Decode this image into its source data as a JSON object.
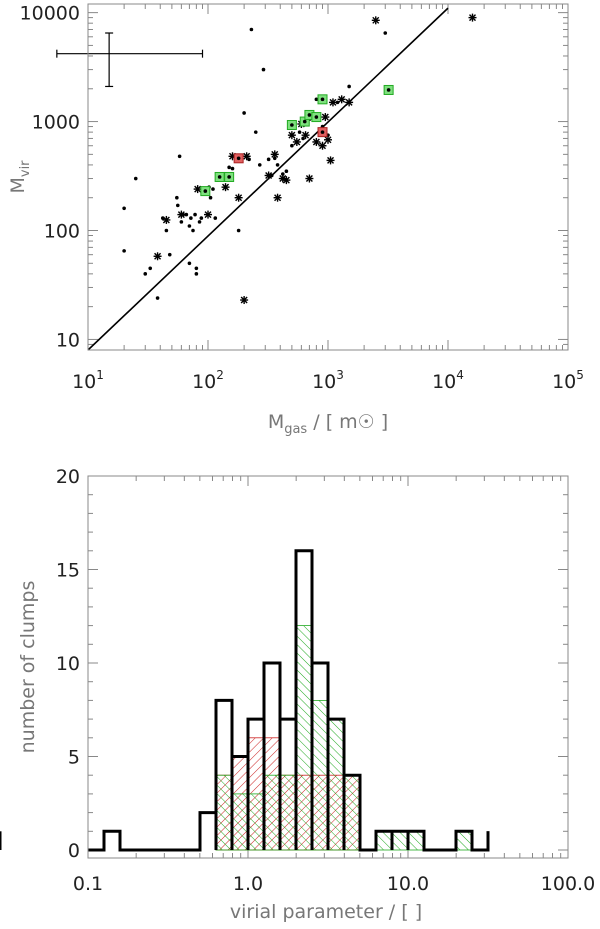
{
  "chart_data": [
    {
      "type": "scatter",
      "xlabel": "M",
      "xlabel_sub": "gas",
      "xlabel_suffix": " / [ m",
      "xlabel_symbol": "☉",
      "xlabel_end": " ]",
      "ylabel": "M",
      "ylabel_sub": "vir",
      "x_scale": "log",
      "y_scale": "log",
      "xlim": [
        10,
        100000
      ],
      "ylim": [
        8,
        12000
      ],
      "x_ticks": [
        {
          "value": 10,
          "base": "10",
          "exp": "1"
        },
        {
          "value": 100,
          "base": "10",
          "exp": "2"
        },
        {
          "value": 1000,
          "base": "10",
          "exp": "3"
        },
        {
          "value": 10000,
          "base": "10",
          "exp": "4"
        },
        {
          "value": 100000,
          "base": "10",
          "exp": "5"
        }
      ],
      "y_ticks": [
        {
          "value": 10,
          "label": "10"
        },
        {
          "value": 100,
          "label": "100"
        },
        {
          "value": 1000,
          "label": "1000"
        },
        {
          "value": 10000,
          "label": "10000"
        }
      ],
      "fit_line": {
        "x": [
          10,
          10000
        ],
        "y": [
          8,
          11000
        ]
      },
      "error_bar": {
        "x": 15,
        "y": 4200,
        "x_low": 5.5,
        "x_high": 90,
        "y_low": 2100,
        "y_high": 6500
      },
      "series": [
        {
          "marker": "dot",
          "points": [
            [
              20,
              160
            ],
            [
              20,
              65
            ],
            [
              25,
              300
            ],
            [
              30,
              40
            ],
            [
              33,
              45
            ],
            [
              38,
              24
            ],
            [
              42,
              130
            ],
            [
              45,
              100
            ],
            [
              48,
              60
            ],
            [
              55,
              200
            ],
            [
              58,
              480
            ],
            [
              60,
              120
            ],
            [
              62,
              140
            ],
            [
              66,
              140
            ],
            [
              70,
              110
            ],
            [
              72,
              130
            ],
            [
              75,
              100
            ],
            [
              78,
              140
            ],
            [
              80,
              45
            ],
            [
              80,
              40
            ],
            [
              85,
              120
            ],
            [
              88,
              130
            ],
            [
              90,
              220
            ],
            [
              95,
              225
            ],
            [
              100,
              220
            ],
            [
              102,
              250
            ],
            [
              105,
              200
            ],
            [
              110,
              240
            ],
            [
              115,
              130
            ],
            [
              120,
              290
            ],
            [
              140,
              310
            ],
            [
              150,
              380
            ],
            [
              160,
              370
            ],
            [
              180,
              100
            ],
            [
              200,
              1200
            ],
            [
              220,
              450
            ],
            [
              230,
              7000
            ],
            [
              250,
              800
            ],
            [
              270,
              400
            ],
            [
              290,
              3000
            ],
            [
              320,
              450
            ],
            [
              340,
              320
            ],
            [
              360,
              460
            ],
            [
              380,
              400
            ],
            [
              420,
              330
            ],
            [
              450,
              350
            ],
            [
              500,
              600
            ],
            [
              580,
              800
            ],
            [
              620,
              700
            ],
            [
              700,
              1050
            ],
            [
              800,
              1600
            ],
            [
              900,
              900
            ],
            [
              1000,
              750
            ],
            [
              1200,
              1500
            ],
            [
              1500,
              2100
            ],
            [
              3000,
              6500
            ],
            [
              140,
              250
            ],
            [
              70,
              50
            ],
            [
              56,
              170
            ]
          ]
        },
        {
          "marker": "asterisk",
          "points": [
            [
              38,
              58
            ],
            [
              45,
              125
            ],
            [
              60,
              140
            ],
            [
              82,
              240
            ],
            [
              100,
              140
            ],
            [
              140,
              250
            ],
            [
              160,
              480
            ],
            [
              180,
              200
            ],
            [
              200,
              23
            ],
            [
              210,
              480
            ],
            [
              320,
              320
            ],
            [
              360,
              500
            ],
            [
              380,
              200
            ],
            [
              420,
              300
            ],
            [
              450,
              290
            ],
            [
              500,
              750
            ],
            [
              550,
              650
            ],
            [
              600,
              950
            ],
            [
              650,
              750
            ],
            [
              700,
              300
            ],
            [
              800,
              650
            ],
            [
              950,
              1100
            ],
            [
              1000,
              680
            ],
            [
              1050,
              440
            ],
            [
              1100,
              1500
            ],
            [
              1300,
              1600
            ],
            [
              1500,
              1500
            ],
            [
              2500,
              8500
            ],
            [
              16000,
              9000
            ],
            [
              900,
              600
            ]
          ]
        },
        {
          "marker": "green-box",
          "points": [
            [
              95,
              230
            ],
            [
              125,
              310
            ],
            [
              150,
              310
            ],
            [
              500,
              930
            ],
            [
              640,
              1000
            ],
            [
              700,
              1150
            ],
            [
              800,
              1100
            ],
            [
              900,
              1600
            ],
            [
              3200,
              1950
            ]
          ]
        },
        {
          "marker": "red-box",
          "points": [
            [
              180,
              460
            ],
            [
              900,
              800
            ]
          ]
        }
      ]
    },
    {
      "type": "histogram",
      "xlabel": "virial parameter / [   ]",
      "ylabel": "number of clumps",
      "x_scale": "log",
      "y_scale": "linear",
      "xlim": [
        0.1,
        100.0
      ],
      "ylim": [
        0,
        20
      ],
      "x_ticks": [
        {
          "value": 0.1,
          "label": "0.1"
        },
        {
          "value": 1.0,
          "label": "1.0"
        },
        {
          "value": 10.0,
          "label": "10.0"
        },
        {
          "value": 100.0,
          "label": "100.0"
        }
      ],
      "y_ticks": [
        {
          "value": 0,
          "label": "0"
        },
        {
          "value": 5,
          "label": "5"
        },
        {
          "value": 10,
          "label": "10"
        },
        {
          "value": 15,
          "label": "15"
        },
        {
          "value": 20,
          "label": "20"
        }
      ],
      "bin_edges_log10": [
        -1.0,
        -0.9,
        -0.8,
        -0.7,
        -0.6,
        -0.5,
        -0.4,
        -0.3,
        -0.2,
        -0.1,
        0.0,
        0.1,
        0.2,
        0.3,
        0.4,
        0.5,
        0.6,
        0.7,
        0.8,
        0.9,
        1.0,
        1.1,
        1.2,
        1.3,
        1.4,
        1.5
      ],
      "series": [
        {
          "style": "total",
          "color": "#000000",
          "values": [
            0,
            1,
            0,
            0,
            0,
            0,
            0,
            2,
            8,
            5,
            7,
            10,
            7,
            16,
            10,
            7,
            4,
            0,
            1,
            1,
            1,
            0,
            0,
            1,
            0,
            1
          ]
        },
        {
          "style": "red-hatch",
          "color": "#cc2222",
          "values": [
            0,
            0,
            0,
            0,
            0,
            0,
            0,
            0,
            4,
            5,
            6,
            6,
            4,
            4,
            4,
            4,
            4,
            0,
            0,
            0,
            0,
            0,
            0,
            0,
            0,
            0
          ]
        },
        {
          "style": "green-hatch",
          "color": "#22aa22",
          "values": [
            0,
            0,
            0,
            0,
            0,
            0,
            0,
            0,
            4,
            3,
            3,
            4,
            4,
            12,
            8,
            7,
            4,
            0,
            1,
            1,
            1,
            0,
            0,
            1,
            0,
            1
          ]
        }
      ]
    }
  ]
}
